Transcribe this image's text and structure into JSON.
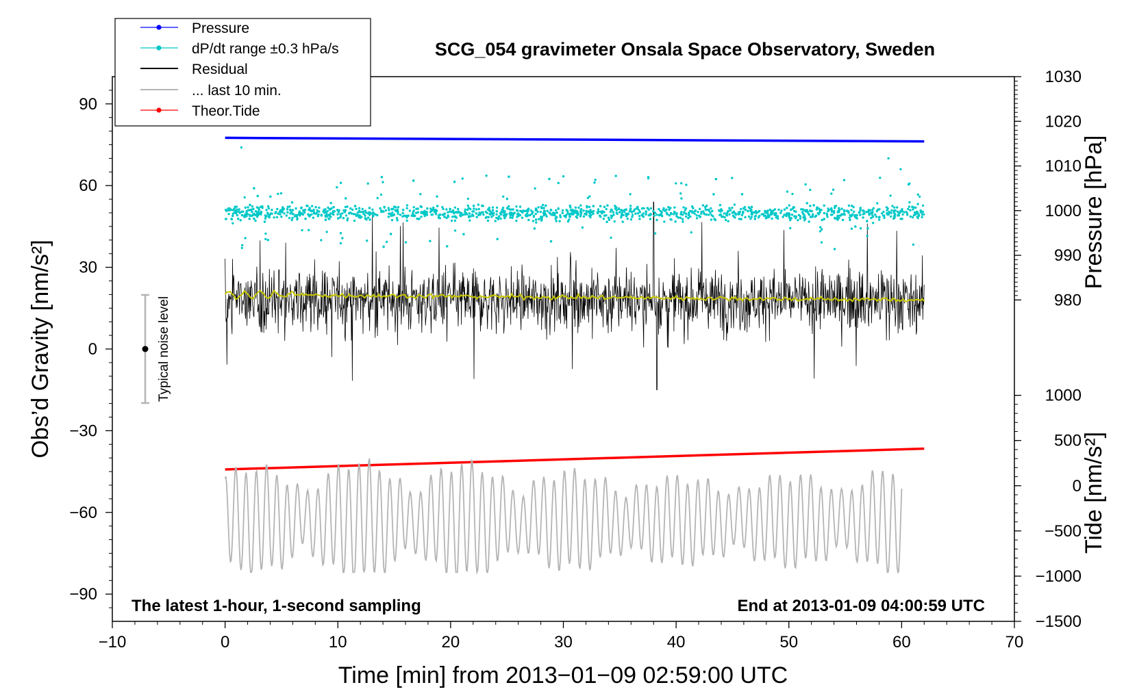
{
  "chart_data": {
    "type": "line",
    "title": "SCG_054 gravimeter Onsala Space Observatory, Sweden",
    "xlabel": "Time [min] from 2013−01−09 02:59:00 UTC",
    "ylabel_left": "Obs’d Gravity [nm/s²]",
    "ylabel_right_top": "Pressure [hPa]",
    "ylabel_right_bottom": "Tide [nm/s²]",
    "xlim": [
      -10,
      70
    ],
    "ylim_left": [
      -100,
      100
    ],
    "x_ticks": [
      {
        "value": -10,
        "label": "−10"
      },
      {
        "value": 0,
        "label": "0"
      },
      {
        "value": 10,
        "label": "10"
      },
      {
        "value": 20,
        "label": "20"
      },
      {
        "value": 30,
        "label": "30"
      },
      {
        "value": 40,
        "label": "40"
      },
      {
        "value": 50,
        "label": "50"
      },
      {
        "value": 60,
        "label": "60"
      },
      {
        "value": 70,
        "label": "70"
      }
    ],
    "y_left_ticks": [
      {
        "value": 90,
        "label": "90"
      },
      {
        "value": 60,
        "label": "60"
      },
      {
        "value": 30,
        "label": "30"
      },
      {
        "value": 0,
        "label": "0"
      },
      {
        "value": -30,
        "label": "−30"
      },
      {
        "value": -60,
        "label": "−60"
      },
      {
        "value": -90,
        "label": "−90"
      }
    ],
    "pressure_axis": {
      "range": [
        980,
        1030
      ],
      "left_equivalent": [
        18,
        100
      ],
      "ticks": [
        {
          "value": 1030,
          "label": "1030"
        },
        {
          "value": 1020,
          "label": "1020"
        },
        {
          "value": 1010,
          "label": "1010"
        },
        {
          "value": 1000,
          "label": "1000"
        },
        {
          "value": 990,
          "label": "990"
        },
        {
          "value": 980,
          "label": "980"
        }
      ]
    },
    "tide_axis": {
      "range": [
        -1500,
        1000
      ],
      "left_equivalent": [
        -100,
        -17
      ],
      "ticks": [
        {
          "value": 1000,
          "label": "1000"
        },
        {
          "value": 500,
          "label": "500"
        },
        {
          "value": 0,
          "label": "0"
        },
        {
          "value": -500,
          "label": "−500"
        },
        {
          "value": -1000,
          "label": "−1000"
        },
        {
          "value": -1500,
          "label": "−1500"
        }
      ]
    },
    "legend": {
      "placement": "top-left",
      "entries": [
        {
          "label": "Pressure",
          "color": "#0000ff",
          "marker": true
        },
        {
          "label": "dP/dt range ±0.3 hPa/s",
          "color": "#00c8c8",
          "marker": true
        },
        {
          "label": "Residual",
          "color": "#000000",
          "marker": false
        },
        {
          "label": "... last 10 min.",
          "color": "#b4b4b4",
          "marker": false
        },
        {
          "label": "Theor.Tide",
          "color": "#ff0000",
          "marker": true
        }
      ]
    },
    "series": [
      {
        "name": "Pressure",
        "axis": "pressure",
        "color": "#0000ff",
        "x": [
          0,
          62
        ],
        "values": [
          1016.3,
          1015.5
        ]
      },
      {
        "name": "dP/dt range ±0.3 hPa/s",
        "axis": "left",
        "color": "#00c8c8",
        "x_range": [
          0,
          62
        ],
        "center": 50,
        "spread": 3,
        "outlier_max": 74
      },
      {
        "name": "Residual",
        "axis": "left",
        "color": "#000000",
        "x_range": [
          0,
          62
        ],
        "center": 18,
        "min": -15,
        "max": 54
      },
      {
        "name": "Residual smoothed",
        "axis": "left",
        "color": "#c8c800",
        "x_range": [
          0,
          62
        ],
        "values": [
          20,
          18
        ]
      },
      {
        "name": "... last 10 min.",
        "axis": "left",
        "color": "#b4b4b4",
        "x_range": [
          0,
          60
        ],
        "center": -63,
        "min": -82,
        "max": -39
      },
      {
        "name": "Theor.Tide",
        "axis": "tide",
        "color": "#ff0000",
        "x": [
          0,
          62
        ],
        "values": [
          180,
          410
        ]
      }
    ],
    "noise_bar": {
      "label": "Typical noise level",
      "x": -7,
      "center": 0,
      "low": -20,
      "high": 20
    },
    "annotation_left": "The latest 1-hour, 1-second sampling",
    "annotation_right": "End at 2013-01-09 04:00:59 UTC"
  }
}
